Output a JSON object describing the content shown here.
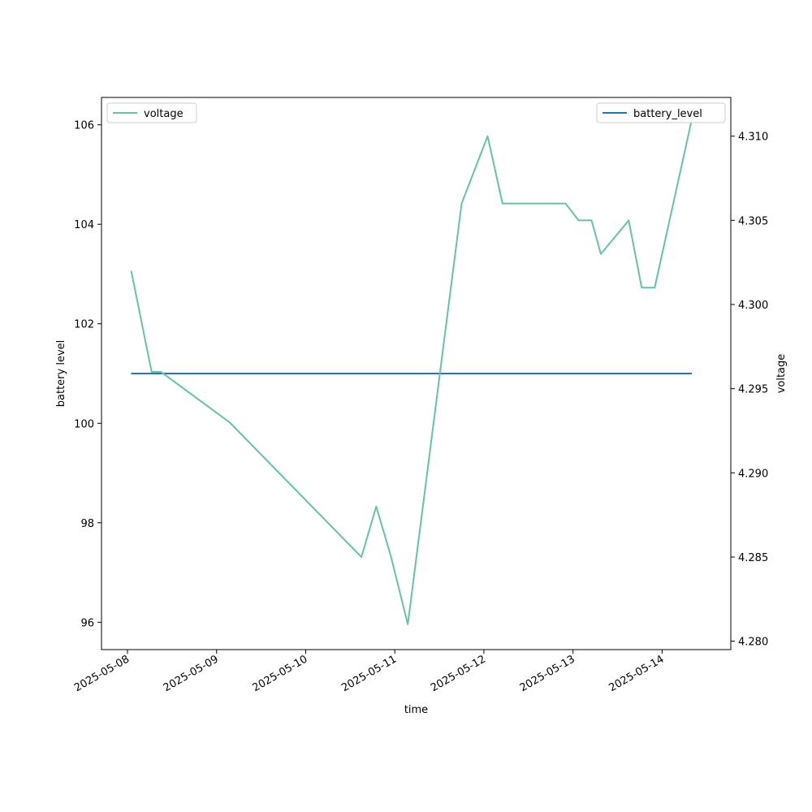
{
  "chart_data": {
    "type": "line",
    "title": "",
    "xlabel": "time",
    "ylabel_left": "battery level",
    "ylabel_right": "voltage",
    "x_ticks": [
      "2025-05-08",
      "2025-05-09",
      "2025-05-10",
      "2025-05-11",
      "2025-05-12",
      "2025-05-13",
      "2025-05-14"
    ],
    "y_left_ticks": [
      "96",
      "98",
      "100",
      "102",
      "104",
      "106"
    ],
    "y_right_ticks": [
      "4.280",
      "4.285",
      "4.290",
      "4.295",
      "4.300",
      "4.305",
      "4.310"
    ],
    "y_left_range": [
      95.45,
      106.55
    ],
    "y_right_range": [
      4.2795,
      4.3123
    ],
    "x_range": [
      "2025-05-07 17:00",
      "2025-05-14 18:30"
    ],
    "grid": false,
    "series": [
      {
        "name": "battery_level",
        "axis": "left",
        "color": "#1f77b4",
        "points": [
          [
            "2025-05-08 01:00",
            101
          ],
          [
            "2025-05-14 08:00",
            101
          ]
        ]
      },
      {
        "name": "voltage",
        "axis": "right",
        "color": "#66c2a5",
        "points": [
          [
            "2025-05-08 01:00",
            4.302
          ],
          [
            "2025-05-08 06:30",
            4.296
          ],
          [
            "2025-05-08 09:00",
            4.296
          ],
          [
            "2025-05-09 03:30",
            4.293
          ],
          [
            "2025-05-10 15:00",
            4.285
          ],
          [
            "2025-05-10 19:00",
            4.288
          ],
          [
            "2025-05-10 23:00",
            4.285
          ],
          [
            "2025-05-11 03:30",
            4.281
          ],
          [
            "2025-05-11 18:00",
            4.306
          ],
          [
            "2025-05-11 21:30",
            4.308
          ],
          [
            "2025-05-12 01:00",
            4.31
          ],
          [
            "2025-05-12 05:00",
            4.306
          ],
          [
            "2025-05-12 22:00",
            4.306
          ],
          [
            "2025-05-13 01:30",
            4.305
          ],
          [
            "2025-05-13 05:00",
            4.305
          ],
          [
            "2025-05-13 07:30",
            4.303
          ],
          [
            "2025-05-13 15:00",
            4.305
          ],
          [
            "2025-05-13 18:30",
            4.301
          ],
          [
            "2025-05-13 22:00",
            4.301
          ],
          [
            "2025-05-14 08:00",
            4.311
          ]
        ]
      }
    ],
    "legends": [
      {
        "placement": "top-left",
        "entries": [
          "voltage"
        ]
      },
      {
        "placement": "top-right",
        "entries": [
          "battery_level"
        ]
      }
    ]
  }
}
